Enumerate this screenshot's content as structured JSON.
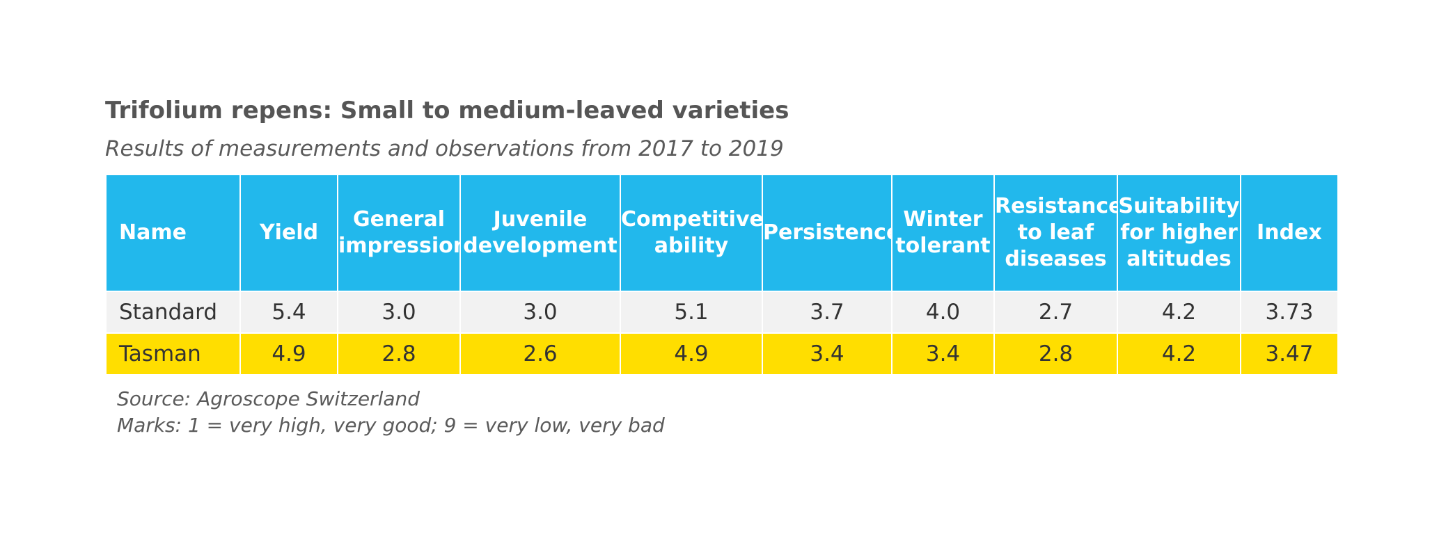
{
  "chart_data": {
    "type": "table",
    "title": "Trifolium repens: Small to medium-leaved varieties",
    "subtitle": "Results of measurements and observations from 2017 to 2019",
    "columns": [
      "Name",
      "Yield",
      "General impression",
      "Juvenile development",
      "Competitive ability",
      "Persistence",
      "Winter tolerant",
      "Resistance to leaf diseases",
      "Suitability for higher altitudes",
      "Index"
    ],
    "rows": [
      {
        "name": "Standard",
        "values": [
          "5.4",
          "3.0",
          "3.0",
          "5.1",
          "3.7",
          "4.0",
          "2.7",
          "4.2",
          "3.73"
        ],
        "color": "#f2f2f2"
      },
      {
        "name": "Tasman",
        "values": [
          "4.9",
          "2.8",
          "2.6",
          "4.9",
          "3.4",
          "3.4",
          "2.8",
          "4.2",
          "3.47"
        ],
        "color": "#ffde00"
      }
    ],
    "header_color": "#22b8ec",
    "source": "Source: Agroscope Switzerland",
    "marks_note": "Marks: 1 = very high, very good; 9 = very low, very bad"
  }
}
